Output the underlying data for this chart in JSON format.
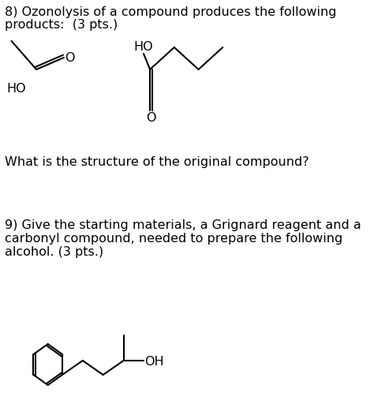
{
  "background_color": "#ffffff",
  "text_color": "#000000",
  "line_color": "#000000",
  "q8_line1": "8) Ozonolysis of a compound produces the following",
  "q8_line2": "products:  (3 pts.)",
  "q8_sub": "What is the structure of the original compound?",
  "q9_line1": "9) Give the starting materials, a Grignard reagent and a",
  "q9_line2": "carbonyl compound, needed to prepare the following",
  "q9_line3": "alcohol. (3 pts.)",
  "font_size": 11.5,
  "fig_width": 4.74,
  "fig_height": 5.12,
  "dpi": 100
}
